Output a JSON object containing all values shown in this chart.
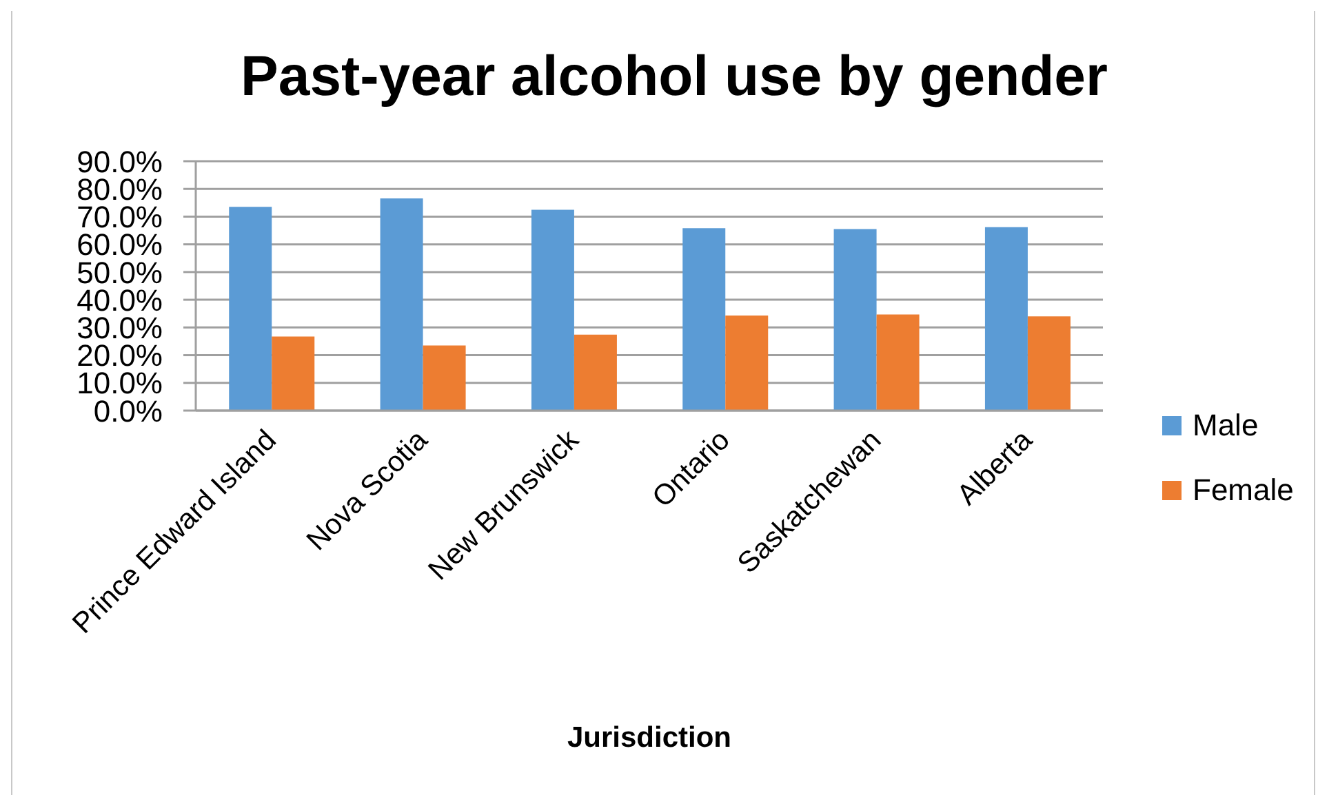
{
  "chart_data": {
    "type": "bar",
    "title": "Past-year alcohol use by gender",
    "xlabel": "Jurisdiction",
    "categories": [
      "Prince Edward Island",
      "Nova Scotia",
      "New Brunswick",
      "Ontario",
      "Saskatchewan",
      "Alberta"
    ],
    "series": [
      {
        "name": "Male",
        "color": "#5b9bd5",
        "values": [
          73.5,
          76.6,
          72.5,
          65.8,
          65.5,
          66.2
        ]
      },
      {
        "name": "Female",
        "color": "#ed7d31",
        "values": [
          26.7,
          23.5,
          27.4,
          34.3,
          34.7,
          34.0
        ]
      }
    ],
    "ylim": [
      0,
      90
    ],
    "yticks": [
      {
        "value": 0,
        "label": "0.0%"
      },
      {
        "value": 10,
        "label": "10.0%"
      },
      {
        "value": 20,
        "label": "20.0%"
      },
      {
        "value": 30,
        "label": "30.0%"
      },
      {
        "value": 40,
        "label": "40.0%"
      },
      {
        "value": 50,
        "label": "50.0%"
      },
      {
        "value": 60,
        "label": "60.0%"
      },
      {
        "value": 70,
        "label": "70.0%"
      },
      {
        "value": 80,
        "label": "80.0%"
      },
      {
        "value": 90,
        "label": "90.0%"
      }
    ],
    "grid": "y",
    "legend": "right"
  }
}
